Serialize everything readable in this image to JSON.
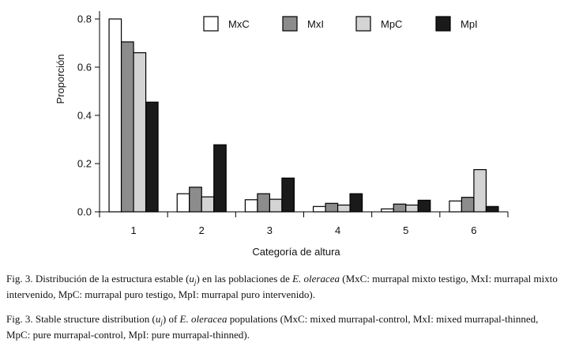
{
  "chart_data": {
    "type": "bar",
    "categories": [
      "1",
      "2",
      "3",
      "4",
      "5",
      "6"
    ],
    "series": [
      {
        "name": "MxC",
        "color": "#ffffff",
        "values": [
          0.8,
          0.075,
          0.05,
          0.022,
          0.012,
          0.045
        ]
      },
      {
        "name": "MxI",
        "color": "#8c8c8c",
        "values": [
          0.705,
          0.102,
          0.075,
          0.035,
          0.032,
          0.06
        ]
      },
      {
        "name": "MpC",
        "color": "#d4d4d4",
        "values": [
          0.66,
          0.062,
          0.052,
          0.028,
          0.028,
          0.175
        ]
      },
      {
        "name": "MpI",
        "color": "#1a1a1a",
        "values": [
          0.455,
          0.278,
          0.14,
          0.075,
          0.048,
          0.022
        ]
      }
    ],
    "xlabel": "Categoría de altura",
    "ylabel": "Proporción",
    "ylim": [
      0,
      0.8
    ],
    "yticks": [
      "0.0",
      "0.2",
      "0.4",
      "0.6",
      "0.8"
    ],
    "legend_position": "top-right",
    "grid": false
  },
  "caption_es": {
    "prefix": "Fig. 3. Distribución de la estructura estable (",
    "var": "u",
    "var_sub": "j",
    "mid": ") en las poblaciones de ",
    "species": "E. oleracea",
    "suffix": " (MxC: murrapal mixto testigo, MxI: murrapal mixto intervenido, MpC: murrapal puro testigo, MpI: murrapal puro intervenido)."
  },
  "caption_en": {
    "prefix": "Fig. 3. Stable structure distribution (",
    "var": "u",
    "var_sub": "j",
    "mid": ") of ",
    "species": "E. oleracea",
    "suffix": " populations (MxC: mixed murrapal-control, MxI: mixed murrapal-thinned, MpC: pure murrapal-control, MpI: pure murrapal-thinned)."
  }
}
